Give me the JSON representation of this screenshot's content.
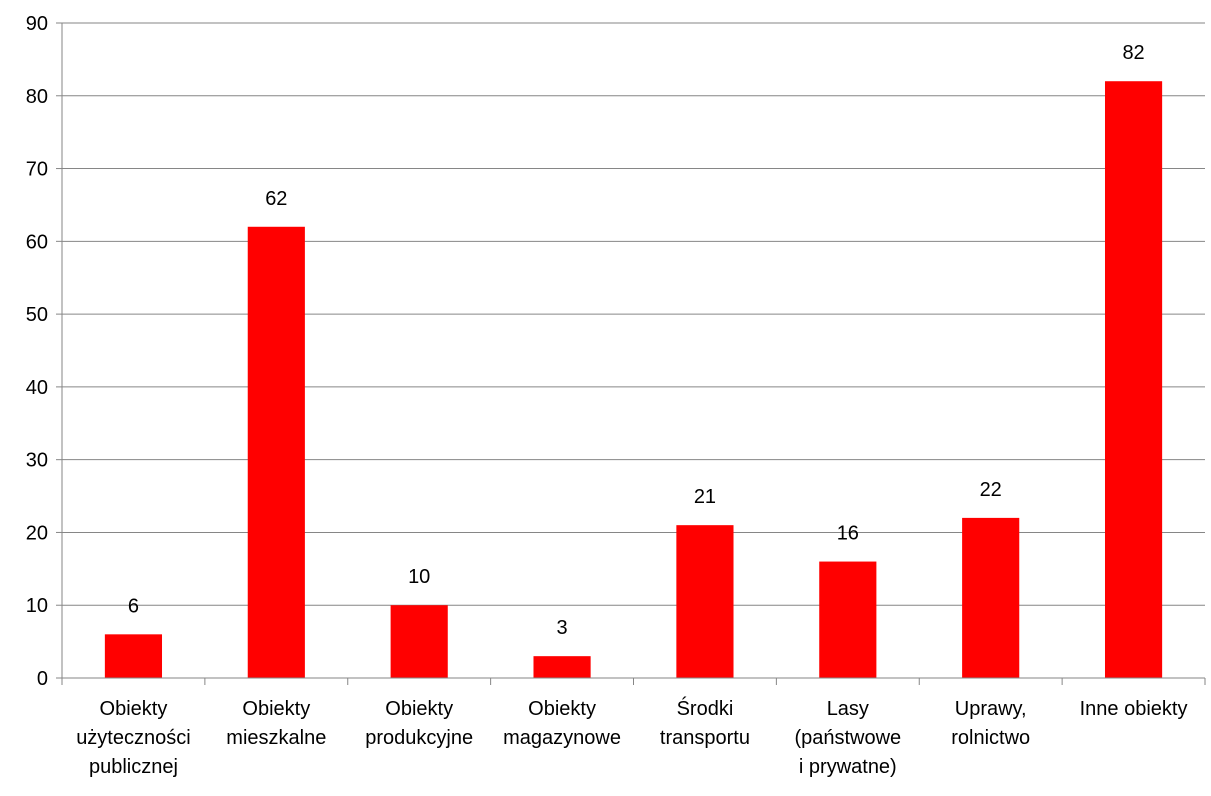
{
  "chart_data": {
    "type": "bar",
    "categories": [
      [
        "Obiekty",
        "użyteczności",
        "publicznej"
      ],
      [
        "Obiekty",
        "mieszkalne"
      ],
      [
        "Obiekty",
        "produkcyjne"
      ],
      [
        "Obiekty",
        "magazynowe"
      ],
      [
        "Środki",
        "transportu"
      ],
      [
        "Lasy",
        "(państwowe",
        "i prywatne)"
      ],
      [
        "Uprawy,",
        "rolnictwo"
      ],
      [
        "Inne obiekty"
      ]
    ],
    "values": [
      6,
      62,
      10,
      3,
      21,
      16,
      22,
      82
    ],
    "data_labels": [
      "6",
      "62",
      "10",
      "3",
      "21",
      "16",
      "22",
      "82"
    ],
    "yticks": [
      0,
      10,
      20,
      30,
      40,
      50,
      60,
      70,
      80,
      90
    ],
    "ytick_labels": [
      "0",
      "10",
      "20",
      "30",
      "40",
      "50",
      "60",
      "70",
      "80",
      "90"
    ],
    "ylim": [
      0,
      90
    ],
    "grid": true,
    "legend": "none",
    "title": "",
    "xlabel": "",
    "ylabel": "",
    "colors": {
      "bar": "#ff0000",
      "grid": "#868686",
      "axis": "#868686"
    }
  }
}
